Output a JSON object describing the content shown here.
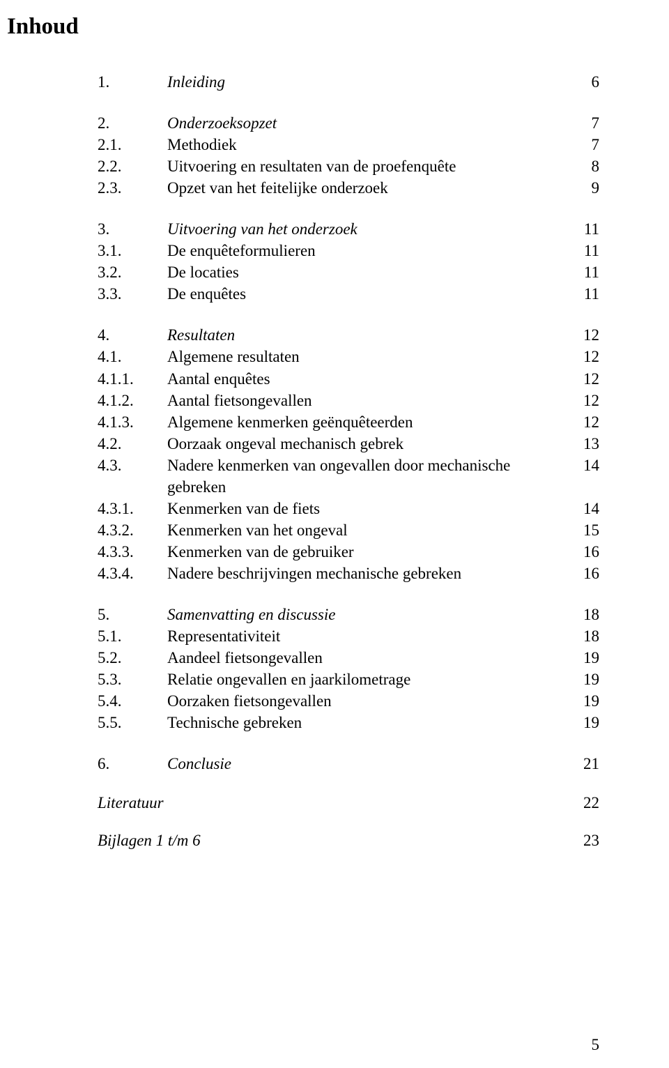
{
  "title": "Inhoud",
  "entries": [
    {
      "num": "1.",
      "label": "Inleiding",
      "page": "6",
      "italic": true,
      "gapAfter": true
    },
    {
      "num": "2.",
      "label": "Onderzoeksopzet",
      "page": "7",
      "italic": true
    },
    {
      "num": "2.1.",
      "label": "Methodiek",
      "page": "7"
    },
    {
      "num": "2.2.",
      "label": "Uitvoering en resultaten van de proefenquête",
      "page": "8"
    },
    {
      "num": "2.3.",
      "label": "Opzet van het feitelijke onderzoek",
      "page": "9",
      "gapAfter": true
    },
    {
      "num": "3.",
      "label": "Uitvoering van het onderzoek",
      "page": "11",
      "italic": true
    },
    {
      "num": "3.1.",
      "label": "De enquêteformulieren",
      "page": "11"
    },
    {
      "num": "3.2.",
      "label": "De locaties",
      "page": "11"
    },
    {
      "num": "3.3.",
      "label": "De enquêtes",
      "page": "11",
      "gapAfter": true
    },
    {
      "num": "4.",
      "label": "Resultaten",
      "page": "12",
      "italic": true
    },
    {
      "num": "4.1.",
      "label": "Algemene resultaten",
      "page": "12"
    },
    {
      "num": "4.1.1.",
      "label": "Aantal enquêtes",
      "page": "12"
    },
    {
      "num": "4.1.2.",
      "label": "Aantal fietsongevallen",
      "page": "12"
    },
    {
      "num": "4.1.3.",
      "label": "Algemene kenmerken geënquêteerden",
      "page": "12"
    },
    {
      "num": "4.2.",
      "label": "Oorzaak ongeval mechanisch gebrek",
      "page": "13"
    },
    {
      "num": "4.3.",
      "label": "Nadere kenmerken van ongevallen door mechanische gebreken",
      "page": "14"
    },
    {
      "num": "4.3.1.",
      "label": "Kenmerken van de fiets",
      "page": "14"
    },
    {
      "num": "4.3.2.",
      "label": "Kenmerken van het ongeval",
      "page": "15"
    },
    {
      "num": "4.3.3.",
      "label": "Kenmerken van de gebruiker",
      "page": "16"
    },
    {
      "num": "4.3.4.",
      "label": "Nadere beschrijvingen mechanische gebreken",
      "page": "16",
      "gapAfter": true
    },
    {
      "num": "5.",
      "label": "Samenvatting en discussie",
      "page": "18",
      "italic": true
    },
    {
      "num": "5.1.",
      "label": "Representativiteit",
      "page": "18"
    },
    {
      "num": "5.2.",
      "label": "Aandeel fietsongevallen",
      "page": "19"
    },
    {
      "num": "5.3.",
      "label": "Relatie ongevallen en jaarkilometrage",
      "page": "19"
    },
    {
      "num": "5.4.",
      "label": "Oorzaken fietsongevallen",
      "page": "19"
    },
    {
      "num": "5.5.",
      "label": "Technische gebreken",
      "page": "19",
      "gapAfter": true
    },
    {
      "num": "6.",
      "label": "Conclusie",
      "page": "21",
      "italic": true,
      "gapAfter": true
    }
  ],
  "tail": [
    {
      "label": "Literatuur",
      "page": "22",
      "italic": true
    },
    {
      "label": "Bijlagen 1 t/m 6",
      "page": "23",
      "italic": true
    }
  ],
  "pageNumber": "5"
}
